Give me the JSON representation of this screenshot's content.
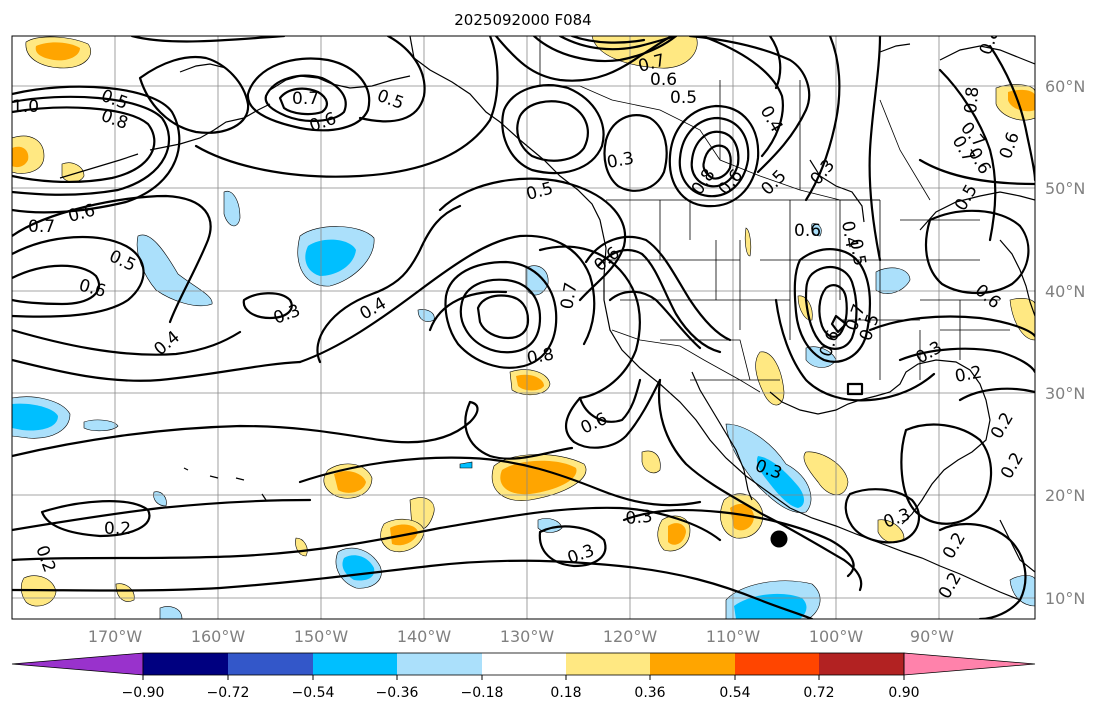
{
  "title": "2025092000 F084",
  "map": {
    "lon_labels": [
      "170°W",
      "160°W",
      "150°W",
      "140°W",
      "130°W",
      "120°W",
      "110°W",
      "100°W",
      "90°W"
    ],
    "lat_labels": [
      "60°N",
      "50°N",
      "40°N",
      "30°N",
      "20°N",
      "10°N"
    ],
    "contour_labels": [
      "0.5",
      "0.8",
      "1.0",
      "0.7",
      "0.6",
      "0.5",
      "0.7",
      "0.6",
      "0.7",
      "0.6",
      "0.5",
      "0.4",
      "0.8",
      "0.6",
      "0.5",
      "0.3",
      "0.7",
      "0.5",
      "0.6",
      "0.4",
      "0.4",
      "0.3",
      "0.5",
      "0.6",
      "0.7",
      "0.5",
      "0.6",
      "0.4",
      "0.7",
      "0.8",
      "0.6",
      "0.5",
      "0.6",
      "0.3",
      "0.3",
      "0.2",
      "0.2",
      "0.3",
      "0.3",
      "0.2",
      "0.2",
      "0.3",
      "0.3",
      "0.2",
      "0.2",
      "0.2",
      "0.8",
      "0.6",
      "0.8",
      "0.7",
      "0.6",
      "0.5",
      "0.6"
    ]
  },
  "colorbar": {
    "colors": [
      "#9932cc",
      "#000080",
      "#3357c9",
      "#00bfff",
      "#abe0fb",
      "#ffffff",
      "#ffe882",
      "#ffa500",
      "#ff4500",
      "#b22222",
      "#ff82ab"
    ],
    "ticks": [
      "−0.90",
      "−0.72",
      "−0.54",
      "−0.36",
      "−0.18",
      "0.18",
      "0.36",
      "0.54",
      "0.72",
      "0.90"
    ]
  },
  "marker": {
    "label": "storm-position"
  }
}
